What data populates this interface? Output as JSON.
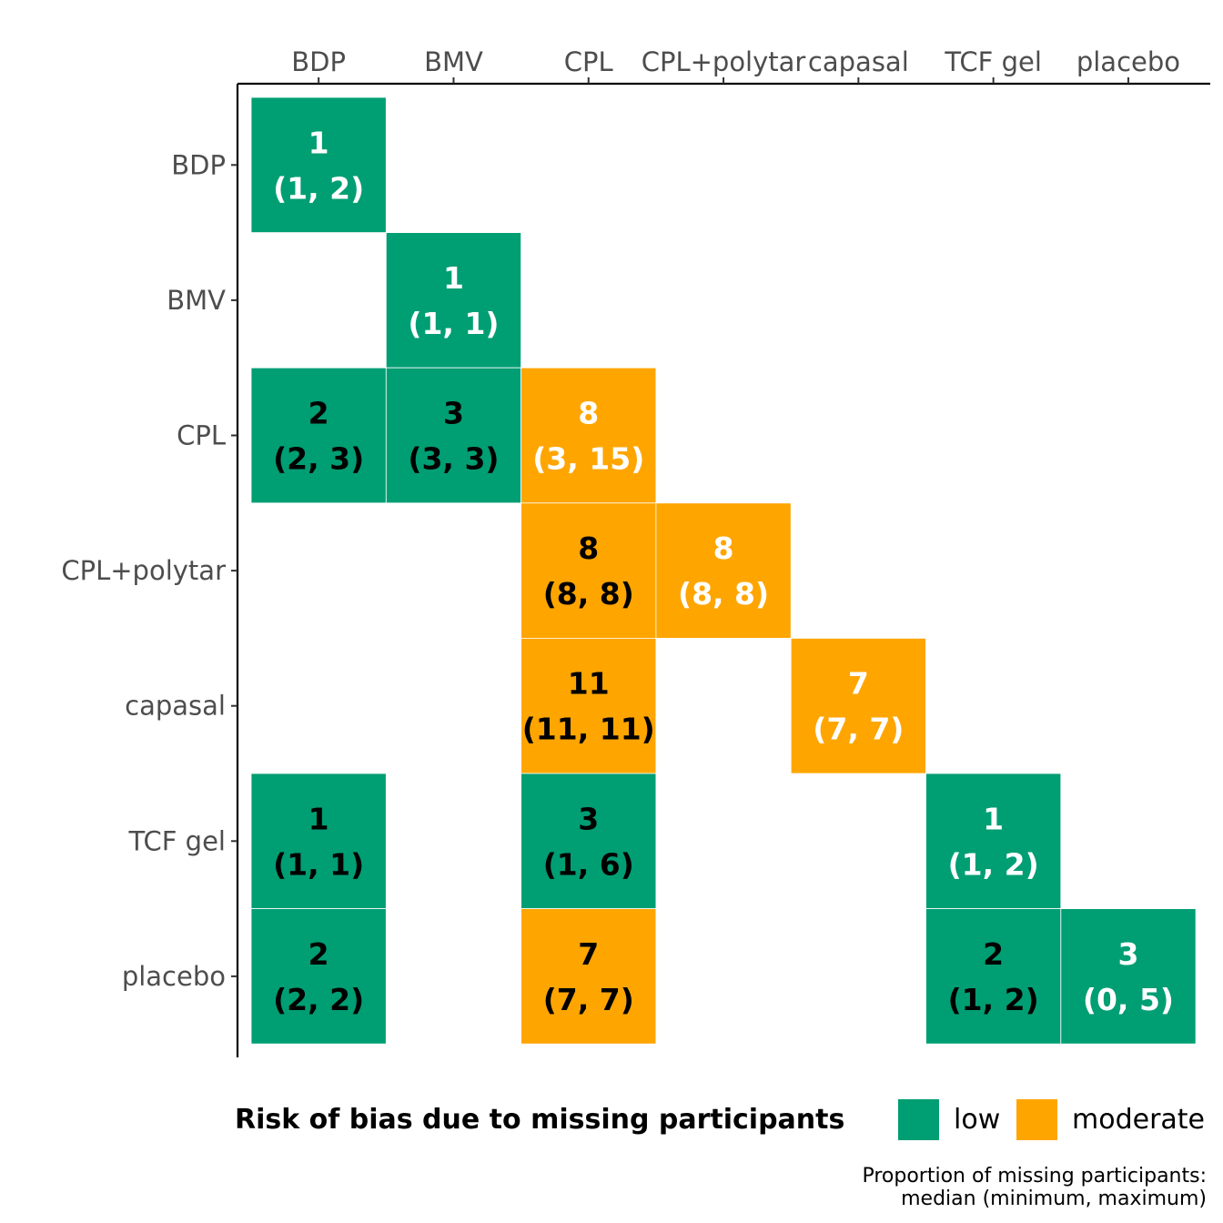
{
  "chart_data": {
    "type": "heatmap",
    "columns": [
      "BDP",
      "BMV",
      "CPL",
      "CPL+polytar",
      "capasal",
      "TCF gel",
      "placebo"
    ],
    "rows": [
      "BDP",
      "BMV",
      "CPL",
      "CPL+polytar",
      "capasal",
      "TCF gel",
      "placebo"
    ],
    "cells": [
      {
        "row": "BDP",
        "col": "BDP",
        "median": 1,
        "range": "(1, 2)",
        "risk": "low",
        "text_color": "white"
      },
      {
        "row": "BMV",
        "col": "BMV",
        "median": 1,
        "range": "(1, 1)",
        "risk": "low",
        "text_color": "white"
      },
      {
        "row": "CPL",
        "col": "BDP",
        "median": 2,
        "range": "(2, 3)",
        "risk": "low",
        "text_color": "black"
      },
      {
        "row": "CPL",
        "col": "BMV",
        "median": 3,
        "range": "(3, 3)",
        "risk": "low",
        "text_color": "black"
      },
      {
        "row": "CPL",
        "col": "CPL",
        "median": 8,
        "range": "(3, 15)",
        "risk": "moderate",
        "text_color": "white"
      },
      {
        "row": "CPL+polytar",
        "col": "CPL",
        "median": 8,
        "range": "(8, 8)",
        "risk": "moderate",
        "text_color": "black"
      },
      {
        "row": "CPL+polytar",
        "col": "CPL+polytar",
        "median": 8,
        "range": "(8, 8)",
        "risk": "moderate",
        "text_color": "white"
      },
      {
        "row": "capasal",
        "col": "CPL",
        "median": 11,
        "range": "(11, 11)",
        "risk": "moderate",
        "text_color": "black"
      },
      {
        "row": "capasal",
        "col": "capasal",
        "median": 7,
        "range": "(7, 7)",
        "risk": "moderate",
        "text_color": "white"
      },
      {
        "row": "TCF gel",
        "col": "BDP",
        "median": 1,
        "range": "(1, 1)",
        "risk": "low",
        "text_color": "black"
      },
      {
        "row": "TCF gel",
        "col": "CPL",
        "median": 3,
        "range": "(1, 6)",
        "risk": "low",
        "text_color": "black"
      },
      {
        "row": "TCF gel",
        "col": "TCF gel",
        "median": 1,
        "range": "(1, 2)",
        "risk": "low",
        "text_color": "white"
      },
      {
        "row": "placebo",
        "col": "BDP",
        "median": 2,
        "range": "(2, 2)",
        "risk": "low",
        "text_color": "black"
      },
      {
        "row": "placebo",
        "col": "CPL",
        "median": 7,
        "range": "(7, 7)",
        "risk": "moderate",
        "text_color": "black"
      },
      {
        "row": "placebo",
        "col": "TCF gel",
        "median": 2,
        "range": "(1, 2)",
        "risk": "low",
        "text_color": "black"
      },
      {
        "row": "placebo",
        "col": "placebo",
        "median": 3,
        "range": "(0, 5)",
        "risk": "low",
        "text_color": "white"
      }
    ],
    "colors": {
      "low": "#009e73",
      "moderate": "#ffa500",
      "white": "#ffffff",
      "black": "#000000"
    },
    "legend": {
      "title": "Risk of bias due to missing participants",
      "entries": [
        {
          "key": "low",
          "label": "low"
        },
        {
          "key": "moderate",
          "label": "moderate"
        }
      ],
      "placement": "bottom"
    },
    "caption": {
      "line1": "Proportion of missing participants:",
      "line2": "median (minimum, maximum)"
    }
  }
}
